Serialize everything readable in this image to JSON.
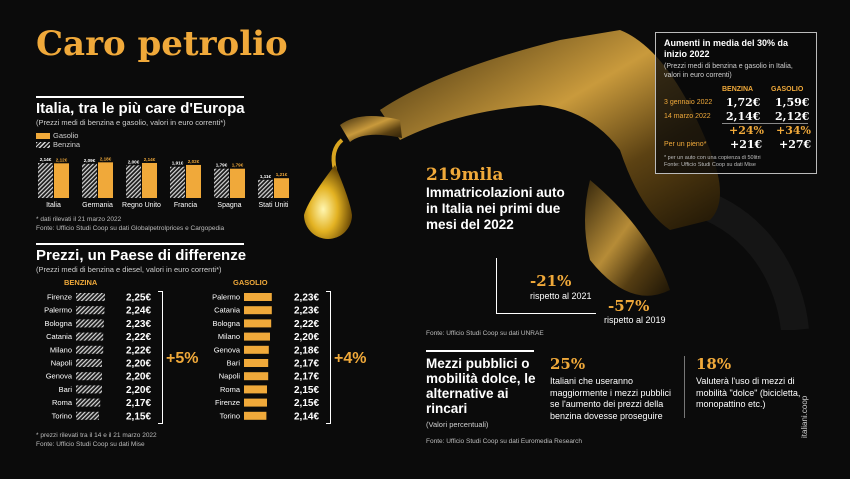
{
  "title": "Caro petrolio",
  "watermark": "italiani.coop",
  "europe": {
    "heading": "Italia, tra le più care d'Europa",
    "subtitle": "(Prezzi medi di benzina e gasolio, valori in euro correnti*)",
    "footnote": "* dati rilevati il 21 marzo 2022",
    "source": "Fonte: Ufficio Studi Coop su dati Globalpetrolprices e Cargopedia"
  },
  "cities": {
    "heading": "Prezzi, un Paese di differenze",
    "subtitle": "(Prezzi medi di benzina e diesel, valori in euro correnti*)",
    "benzina_header": "BENZINA",
    "gasolio_header": "GASOLIO",
    "benzina_spread": "+5%",
    "gasolio_spread": "+4%",
    "footnote": "* prezzi rilevati tra il 14 e il 21 marzo 2022",
    "source": "Fonte: Ufficio Studi Coop su dati Mise"
  },
  "registrations": {
    "number": "219mila",
    "text": "Immatricolazioni auto in Italia nei primi due mesi del 2022",
    "change1_value": "-21%",
    "change1_label": "rispetto al 2021",
    "change2_value": "-57%",
    "change2_label": "rispetto al 2019",
    "source": "Fonte: Ufficio Studi Coop su dati UNRAE"
  },
  "increase_box": {
    "heading": "Aumenti in media del 30% da inizio 2022",
    "subtitle": "(Prezzi medi di benzina e gasolio in Italia, valori in euro correnti)",
    "col_benzina": "BENZINA",
    "col_gasolio": "GASOLIO",
    "rows": [
      {
        "label": "3 gennaio 2022",
        "benzina": "1,72€",
        "gasolio": "1,59€"
      },
      {
        "label": "14 marzo 2022",
        "benzina": "2,14€",
        "gasolio": "2,12€"
      },
      {
        "label": "",
        "benzina": "+24%",
        "gasolio": "+34%"
      },
      {
        "label": "Per un pieno*",
        "benzina": "+21€",
        "gasolio": "+27€"
      }
    ],
    "footnote": "* per un auto con una copienza di 50litri",
    "source": "Fonte: Ufficio Studi Coop su dati Mise"
  },
  "mobility": {
    "heading": "Mezzi pubblici o mobilità dolce, le alternative ai rincari",
    "subtitle": "(Valori percentuali)",
    "stat1_value": "25%",
    "stat1_text": "Italiani che useranno maggiormente i mezzi pubblici se l'aumento dei prezzi della benzina dovesse proseguire",
    "stat2_value": "18%",
    "stat2_text": "Valuterà l'uso di mezzi di mobilità \"dolce\" (bicicletta, monopattino etc.)",
    "source": "Fonte: Ufficio Studi Coop su dati Euromedia Research"
  },
  "chart_data": [
    {
      "type": "bar",
      "id": "europe",
      "legend_position": "top-left",
      "categories": [
        "Italia",
        "Germania",
        "Regno Unito",
        "Francia",
        "Spagna",
        "Stati Uniti"
      ],
      "series": [
        {
          "name": "Benzina",
          "values": [
            2.14,
            2.09,
            2.0,
            1.91,
            1.79,
            1.11
          ],
          "labels": [
            "2,14€",
            "2,09€",
            "2,00€",
            "1,91€",
            "1,79€",
            "1,11€"
          ],
          "style": "hatched"
        },
        {
          "name": "Gasolio",
          "values": [
            2.12,
            2.18,
            2.14,
            2.02,
            1.79,
            1.21
          ],
          "labels": [
            "2,12€",
            "2,18€",
            "2,14€",
            "2,02€",
            "1,79€",
            "1,21€"
          ],
          "color": "#f0a93a"
        }
      ]
    },
    {
      "type": "bar",
      "id": "benzina_cities",
      "orientation": "horizontal",
      "categories": [
        "Firenze",
        "Palermo",
        "Bologna",
        "Catania",
        "Milano",
        "Napoli",
        "Genova",
        "Bari",
        "Roma",
        "Torino"
      ],
      "values": [
        2.25,
        2.24,
        2.23,
        2.22,
        2.22,
        2.2,
        2.2,
        2.2,
        2.17,
        2.15
      ],
      "labels": [
        "2,25€",
        "2,24€",
        "2,23€",
        "2,22€",
        "2,22€",
        "2,20€",
        "2,20€",
        "2,20€",
        "2,17€",
        "2,15€"
      ],
      "style": "hatched"
    },
    {
      "type": "bar",
      "id": "gasolio_cities",
      "orientation": "horizontal",
      "categories": [
        "Palermo",
        "Catania",
        "Bologna",
        "Milano",
        "Genova",
        "Bari",
        "Napoli",
        "Roma",
        "Firenze",
        "Torino"
      ],
      "values": [
        2.23,
        2.23,
        2.22,
        2.2,
        2.18,
        2.17,
        2.17,
        2.15,
        2.15,
        2.14
      ],
      "labels": [
        "2,23€",
        "2,23€",
        "2,22€",
        "2,20€",
        "2,18€",
        "2,17€",
        "2,17€",
        "2,15€",
        "2,15€",
        "2,14€"
      ],
      "color": "#f0a93a"
    }
  ]
}
